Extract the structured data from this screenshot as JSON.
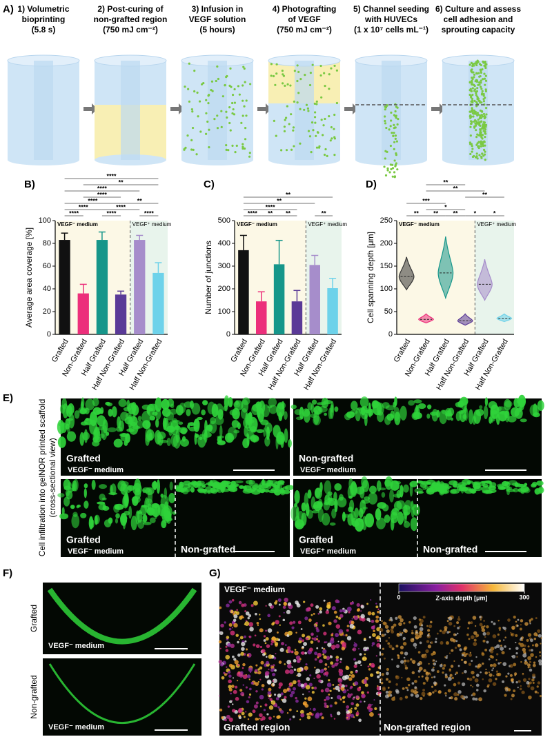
{
  "panel_a": {
    "letter": "A)",
    "steps": [
      {
        "lines": [
          "1) Volumetric",
          "bioprinting",
          "(5.8 s)"
        ]
      },
      {
        "lines": [
          "2) Post-curing of",
          "non-grafted region",
          "(750 mJ cm⁻²)"
        ]
      },
      {
        "lines": [
          "3) Infusion in",
          "VEGF solution",
          "(5 hours)"
        ]
      },
      {
        "lines": [
          "4) Photografting",
          "of VEGF",
          "(750 mJ cm⁻²)"
        ]
      },
      {
        "lines": [
          "5) Channel seeding",
          "with HUVECs",
          "(1 x 10⁷ cells mL⁻¹)"
        ]
      },
      {
        "lines": [
          "6) Culture and assess",
          "cell adhesion and",
          "sprouting capacity"
        ]
      }
    ]
  },
  "chart_data": [
    {
      "type": "bar",
      "letter": "B)",
      "ylabel": "Average area coverage [%]",
      "categories": [
        "Grafted",
        "Non-Grafted",
        "Half Grafted",
        "Half Non-Grafted",
        "Half Grafted",
        "Half Non-Grafted"
      ],
      "values": [
        83,
        36,
        83,
        35,
        83,
        54
      ],
      "errors": [
        6,
        8,
        7,
        3,
        4,
        9
      ],
      "colors": [
        "#111111",
        "#ec2f7b",
        "#16968a",
        "#5a3a97",
        "#a68dcb",
        "#6dd2ea"
      ],
      "ylim": [
        0,
        100
      ],
      "yticks": [
        0,
        20,
        40,
        60,
        80,
        100
      ],
      "regions": [
        {
          "label": "VEGF⁻ medium",
          "from": 0,
          "to": 3,
          "color": "#fcf8e6"
        },
        {
          "label": "VEGF⁺ medium",
          "from": 4,
          "to": 5,
          "color": "#e8f4ec"
        }
      ],
      "brackets": [
        [
          {
            "from": 0,
            "to": 5,
            "label": "****"
          }
        ],
        [
          {
            "from": 1,
            "to": 5,
            "label": "**"
          }
        ],
        [
          {
            "from": 0,
            "to": 4,
            "label": "****"
          }
        ],
        [
          {
            "from": 1,
            "to": 3,
            "label": "****"
          }
        ],
        [
          {
            "from": 0,
            "to": 3,
            "label": "****"
          },
          {
            "from": 3,
            "to": 5,
            "label": "**"
          }
        ],
        [
          {
            "from": 0,
            "to": 2,
            "label": "****"
          },
          {
            "from": 2,
            "to": 4,
            "label": "****"
          }
        ],
        [
          {
            "from": 0,
            "to": 1,
            "label": "****"
          },
          {
            "from": 2,
            "to": 3,
            "label": "****"
          },
          {
            "from": 4,
            "to": 5,
            "label": "****"
          }
        ]
      ]
    },
    {
      "type": "bar",
      "letter": "C)",
      "ylabel": "Number of junctions",
      "categories": [
        "Grafted",
        "Non-Grafted",
        "Half Grafted",
        "Half Non-Grafted",
        "Half Grafted",
        "Half Non-Grafted"
      ],
      "values": [
        370,
        145,
        308,
        145,
        305,
        203
      ],
      "errors": [
        65,
        42,
        105,
        48,
        42,
        43
      ],
      "colors": [
        "#111111",
        "#ec2f7b",
        "#16968a",
        "#5a3a97",
        "#a68dcb",
        "#6dd2ea"
      ],
      "ylim": [
        0,
        500
      ],
      "yticks": [
        0,
        100,
        200,
        300,
        400,
        500
      ],
      "regions": [
        {
          "label": "VEGF⁻ medium",
          "from": 0,
          "to": 3,
          "color": "#fcf8e6"
        },
        {
          "label": "VEGF⁺ medium",
          "from": 4,
          "to": 5,
          "color": "#e8f4ec"
        }
      ],
      "brackets": [
        [
          {
            "from": 0,
            "to": 5,
            "label": "**"
          }
        ],
        [
          {
            "from": 0,
            "to": 4,
            "label": "**"
          }
        ],
        [
          {
            "from": 0,
            "to": 3,
            "label": "****"
          }
        ],
        [
          {
            "from": 0,
            "to": 1,
            "label": "****"
          },
          {
            "from": 1,
            "to": 2,
            "label": "**"
          },
          {
            "from": 2,
            "to": 3,
            "label": "**"
          },
          {
            "from": 4,
            "to": 5,
            "label": "**"
          }
        ]
      ]
    },
    {
      "type": "violin",
      "letter": "D)",
      "ylabel": "Cell spanning depth [μm]",
      "categories": [
        "Grafted",
        "Non-Grafted",
        "Half Grafted",
        "Half Non-Grafted",
        "Half Grafted",
        "Half Non-Grafted"
      ],
      "values": [
        127,
        33,
        135,
        30,
        110,
        35
      ],
      "min": [
        98,
        25,
        80,
        20,
        75,
        28
      ],
      "max": [
        170,
        45,
        215,
        45,
        165,
        45
      ],
      "colors": [
        "#333333",
        "#ec2f7b",
        "#16968a",
        "#5a3a97",
        "#a68dcb",
        "#6dd2ea"
      ],
      "ylim": [
        0,
        250
      ],
      "yticks": [
        0,
        50,
        100,
        150,
        200,
        250
      ],
      "regions": [
        {
          "label": "VEGF⁻ medium",
          "from": 0,
          "to": 3,
          "color": "#fcf8e6"
        },
        {
          "label": "VEGF⁺ medium",
          "from": 4,
          "to": 5,
          "color": "#e8f4ec"
        }
      ],
      "brackets": [
        [
          {
            "from": 1,
            "to": 3,
            "label": "**"
          }
        ],
        [
          {
            "from": 1,
            "to": 4,
            "label": "**"
          }
        ],
        [
          {
            "from": 3,
            "to": 5,
            "label": "**"
          }
        ],
        [
          {
            "from": 0,
            "to": 2,
            "label": "***"
          }
        ],
        [
          {
            "from": 1,
            "to": 3,
            "label": "*"
          }
        ],
        [
          {
            "from": 0,
            "to": 1,
            "label": "**"
          },
          {
            "from": 1,
            "to": 2,
            "label": "**"
          },
          {
            "from": 2,
            "to": 3,
            "label": "**"
          },
          {
            "from": 3,
            "to": 4,
            "label": "*"
          },
          {
            "from": 4,
            "to": 5,
            "label": "*"
          }
        ]
      ]
    }
  ],
  "panel_e": {
    "letter": "E)",
    "side_label": [
      "Cell infiltration into gelNOR printed scaffold",
      "(cross-sectional view)"
    ],
    "images": [
      {
        "label": "Grafted",
        "medium": "VEGF⁻ medium"
      },
      {
        "label": "Non-grafted",
        "medium": "VEGF⁻ medium"
      },
      {
        "label": "Grafted",
        "medium": "VEGF⁻ medium",
        "right_label": "Non-grafted"
      },
      {
        "label": "Grafted",
        "medium": "VEGF⁺ medium",
        "right_label": "Non-grafted"
      }
    ]
  },
  "panel_f": {
    "letter": "F)",
    "rows": [
      {
        "side": "Grafted",
        "medium": "VEGF⁻ medium"
      },
      {
        "side": "Non-grafted",
        "medium": "VEGF⁻ medium"
      }
    ]
  },
  "panel_g": {
    "letter": "G)",
    "medium": "VEGF⁻ medium",
    "colorbar": {
      "label": "Z-axis depth [μm]",
      "ticks": [
        0,
        300
      ]
    },
    "left": "Grafted region",
    "right": "Non-grafted region"
  }
}
